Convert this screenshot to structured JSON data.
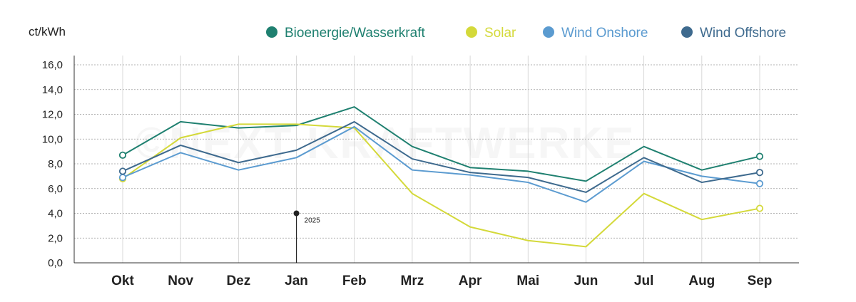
{
  "chart_data": {
    "type": "line",
    "ylabel": "ct/kWh",
    "categories": [
      "Okt",
      "Nov",
      "Dez",
      "Jan",
      "Feb",
      "Mrz",
      "Apr",
      "Mai",
      "Jun",
      "Jul",
      "Aug",
      "Sep"
    ],
    "ylim": [
      0,
      16
    ],
    "yticks": [
      "0,0",
      "2,0",
      "4,0",
      "6,0",
      "8,0",
      "10,0",
      "12,0",
      "14,0",
      "16,0"
    ],
    "grid": true,
    "legend_position": "top-right",
    "watermark": "©NEXT KRAFTWERKE",
    "annotation": {
      "category": "Jan",
      "value": 4.0,
      "label": "2025"
    },
    "series": [
      {
        "name": "Bioenergie/Wasserkraft",
        "color": "#1f8070",
        "values": [
          8.7,
          11.4,
          10.9,
          11.1,
          12.6,
          9.4,
          7.7,
          7.4,
          6.6,
          9.4,
          7.5,
          8.6
        ]
      },
      {
        "name": "Solar",
        "color": "#d4d93a",
        "values": [
          6.8,
          10.1,
          11.2,
          11.2,
          10.9,
          5.6,
          2.9,
          1.8,
          1.3,
          5.6,
          3.5,
          4.4
        ]
      },
      {
        "name": "Wind Onshore",
        "color": "#5b9bd0",
        "values": [
          6.9,
          8.9,
          7.5,
          8.5,
          11.0,
          7.5,
          7.1,
          6.5,
          4.9,
          8.2,
          7.0,
          6.4
        ]
      },
      {
        "name": "Wind Offshore",
        "color": "#3e6a8e",
        "values": [
          7.4,
          9.5,
          8.1,
          9.1,
          11.4,
          8.4,
          7.3,
          6.9,
          5.7,
          8.5,
          6.5,
          7.3
        ]
      }
    ]
  }
}
